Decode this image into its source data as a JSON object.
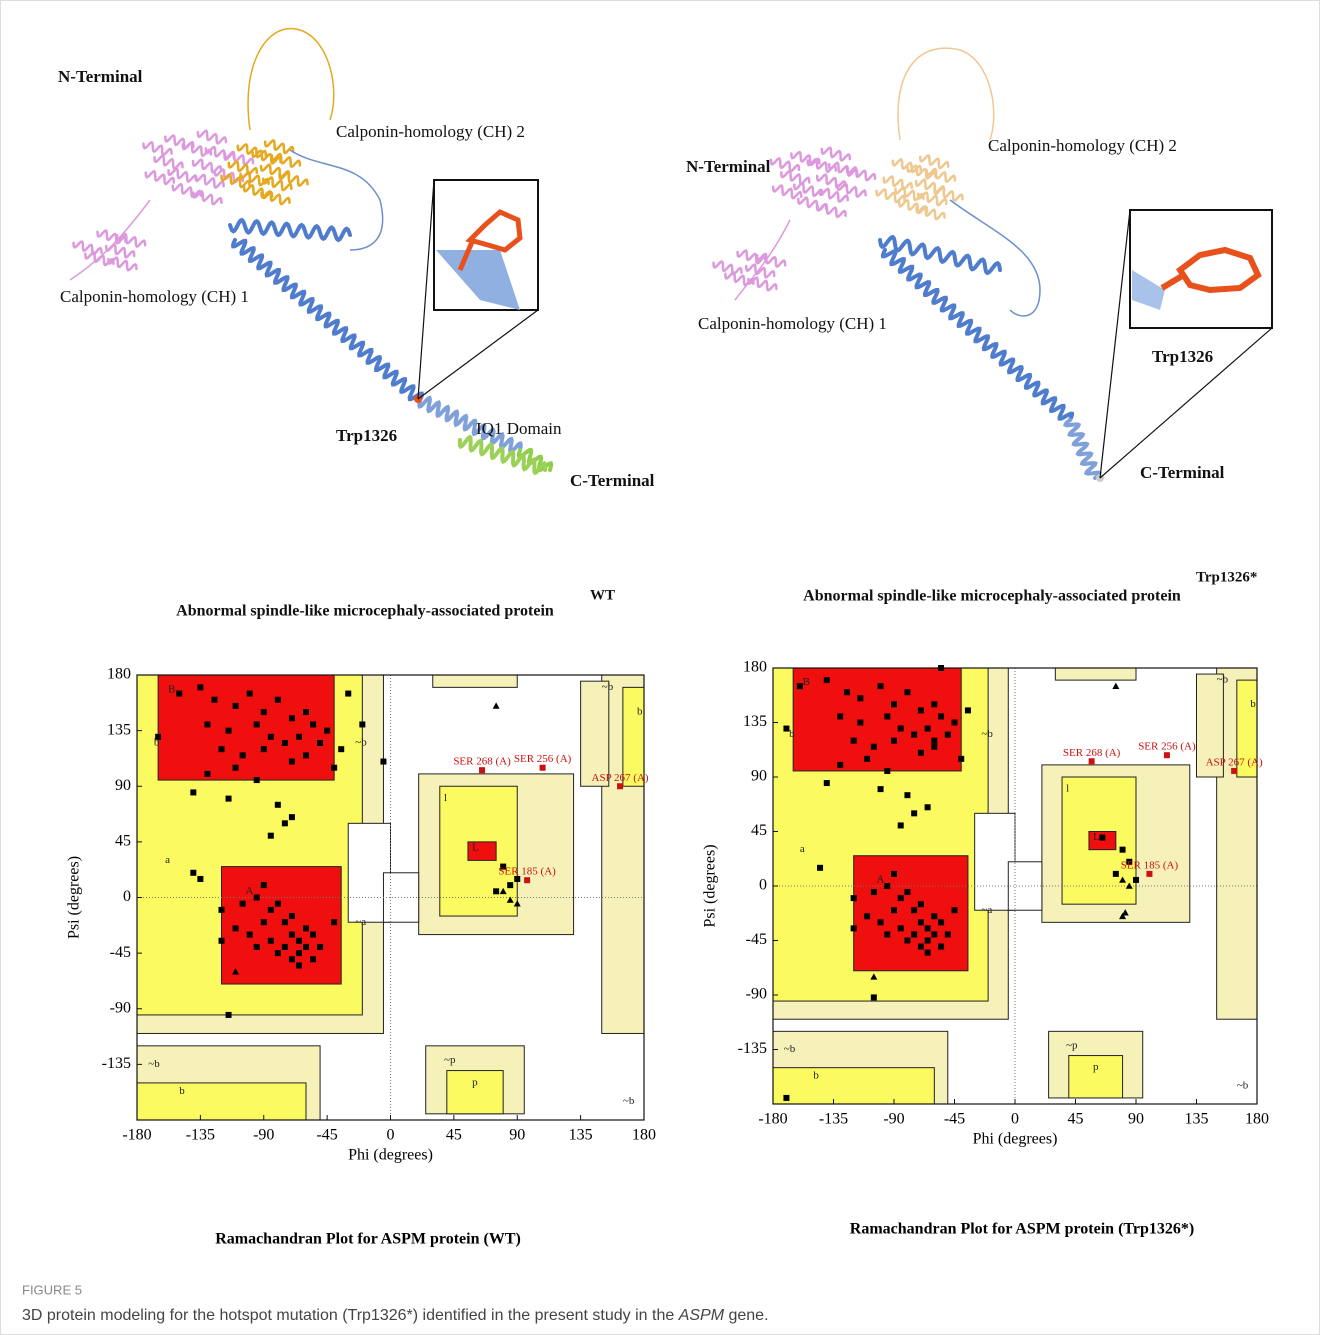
{
  "structures": [
    {
      "labels": {
        "n_terminal": "N-Terminal",
        "ch2": "Calponin-homology (CH) 2",
        "ch1": "Calponin-homology (CH) 1",
        "residue": "Trp1326",
        "domain": "IQ1 Domain",
        "c_terminal": "C-Terminal"
      },
      "variant": "WT",
      "title": "Abnormal spindle-like microcephaly-associated protein"
    },
    {
      "labels": {
        "n_terminal": "N-Terminal",
        "ch2": "Calponin-homology (CH) 2",
        "ch1": "Calponin-homology (CH) 1",
        "residue": "Trp1326",
        "c_terminal": "C-Terminal"
      },
      "variant": "Trp1326*",
      "title": "Abnormal spindle-like microcephaly-associated protein"
    }
  ],
  "chart_data": [
    {
      "type": "scatter",
      "title": "Ramachandran Plot for ASPM protein (WT)",
      "x_label": "Phi (degrees)",
      "y_label": "Psi (degrees)",
      "xlim": [
        -180,
        180
      ],
      "ylim": [
        -180,
        180
      ],
      "xticks": [
        -180,
        -135,
        -90,
        -45,
        0,
        45,
        90,
        135,
        180
      ],
      "yticks": [
        -135,
        -90,
        -45,
        0,
        45,
        90,
        135,
        180
      ],
      "region_labels": [
        "B",
        "b",
        "a",
        "A",
        "~a",
        "~b",
        "l",
        "L",
        "~p",
        "p",
        "~b",
        "~b",
        "b",
        "~b",
        "b"
      ],
      "series": [
        {
          "marker": "square",
          "color": "#000000",
          "x": [
            -150,
            -135,
            -125,
            -110,
            -100,
            -90,
            -80,
            -70,
            -60,
            -130,
            -115,
            -95,
            -85,
            -75,
            -65,
            -55,
            -120,
            -105,
            -90,
            -70,
            -60,
            -50,
            -45,
            -130,
            -110,
            -95,
            -140,
            -115,
            -80,
            -75,
            -85,
            -70,
            -165,
            -30,
            -20,
            -35,
            -5,
            -40,
            -120,
            -105,
            -95,
            -110,
            -100,
            -90,
            -85,
            -80,
            -75,
            -70,
            -65,
            -60,
            -55,
            -70,
            -65,
            -60,
            -75,
            -85,
            -95,
            -120,
            -135,
            -140,
            -90,
            -50,
            -55,
            -65,
            -70,
            -80,
            -115,
            -40,
            80,
            85,
            90,
            75
          ],
          "values": [
            165,
            170,
            160,
            155,
            165,
            150,
            160,
            145,
            150,
            140,
            135,
            140,
            130,
            125,
            130,
            140,
            120,
            115,
            120,
            110,
            115,
            125,
            135,
            100,
            105,
            95,
            85,
            80,
            75,
            60,
            50,
            65,
            130,
            165,
            140,
            120,
            110,
            105,
            -10,
            -5,
            0,
            -25,
            -30,
            -20,
            -35,
            -45,
            -40,
            -30,
            -45,
            -40,
            -50,
            -50,
            -35,
            -25,
            -20,
            -10,
            -40,
            -35,
            15,
            20,
            10,
            -40,
            -30,
            -55,
            -15,
            -5,
            -95,
            -20,
            25,
            10,
            15,
            5
          ]
        },
        {
          "marker": "triangle",
          "color": "#000000",
          "x": [
            -110,
            75,
            80,
            90,
            85
          ],
          "values": [
            -60,
            155,
            5,
            -5,
            -2
          ]
        },
        {
          "marker": "square",
          "color": "#cc1111",
          "x": [
            65,
            108,
            163,
            97
          ],
          "values": [
            103,
            105,
            90,
            14
          ],
          "point_labels": [
            "SER 268 (A)",
            "SER 256 (A)",
            "ASP 267 (A)",
            "SER 185 (A)"
          ]
        }
      ]
    },
    {
      "type": "scatter",
      "title": "Ramachandran Plot for ASPM protein (Trp1326*)",
      "x_label": "Phi (degrees)",
      "y_label": "Psi (degrees)",
      "xlim": [
        -180,
        180
      ],
      "ylim": [
        -180,
        180
      ],
      "xticks": [
        -180,
        -135,
        -90,
        -45,
        0,
        45,
        90,
        135,
        180
      ],
      "yticks": [
        -135,
        -90,
        -45,
        0,
        45,
        90,
        135,
        180
      ],
      "region_labels": [
        "B",
        "b",
        "a",
        "A",
        "~a",
        "~b",
        "l",
        "L",
        "~p",
        "p",
        "~b",
        "~b",
        "b",
        "~b",
        "b"
      ],
      "series": [
        {
          "marker": "square",
          "color": "#000000",
          "x": [
            -160,
            -140,
            -125,
            -115,
            -100,
            -90,
            -80,
            -70,
            -60,
            -130,
            -115,
            -95,
            -85,
            -75,
            -65,
            -55,
            -120,
            -105,
            -90,
            -70,
            -60,
            -50,
            -45,
            -130,
            -110,
            -95,
            -140,
            -100,
            -80,
            -75,
            -85,
            -65,
            -170,
            -55,
            -35,
            -60,
            -40,
            -120,
            -105,
            -95,
            -110,
            -100,
            -90,
            -85,
            -80,
            -75,
            -70,
            -65,
            -60,
            -55,
            -70,
            -65,
            -60,
            -75,
            -85,
            -95,
            -120,
            -145,
            -90,
            -50,
            -55,
            -65,
            -70,
            -80,
            -105,
            -45,
            65,
            80,
            85,
            90,
            75,
            -170
          ],
          "values": [
            165,
            170,
            160,
            155,
            165,
            150,
            160,
            145,
            150,
            140,
            135,
            140,
            130,
            125,
            130,
            140,
            120,
            115,
            120,
            110,
            115,
            125,
            135,
            100,
            105,
            95,
            85,
            80,
            75,
            60,
            50,
            65,
            130,
            180,
            145,
            120,
            105,
            -10,
            -5,
            0,
            -25,
            -30,
            -20,
            -35,
            -45,
            -40,
            -30,
            -45,
            -40,
            -50,
            -50,
            -35,
            -25,
            -20,
            -10,
            -40,
            -35,
            15,
            10,
            -40,
            -30,
            -55,
            -15,
            -5,
            -92,
            -20,
            40,
            30,
            20,
            5,
            10,
            -175
          ]
        },
        {
          "marker": "triangle",
          "color": "#000000",
          "x": [
            -105,
            75,
            80,
            85,
            80,
            82
          ],
          "values": [
            -75,
            165,
            5,
            0,
            -25,
            -22
          ]
        },
        {
          "marker": "square",
          "color": "#cc1111",
          "x": [
            57,
            113,
            163,
            100
          ],
          "values": [
            103,
            108,
            95,
            10
          ],
          "point_labels": [
            "SER 268 (A)",
            "SER 256 (A)",
            "ASP 267 (A)",
            "SER 185 (A)"
          ]
        }
      ]
    }
  ],
  "figure": {
    "label": "FIGURE 5",
    "caption_before": "3D protein modeling for the hotspot mutation (Trp1326*) identified in the present study in the ",
    "caption_gene": "ASPM",
    "caption_after": " gene."
  }
}
